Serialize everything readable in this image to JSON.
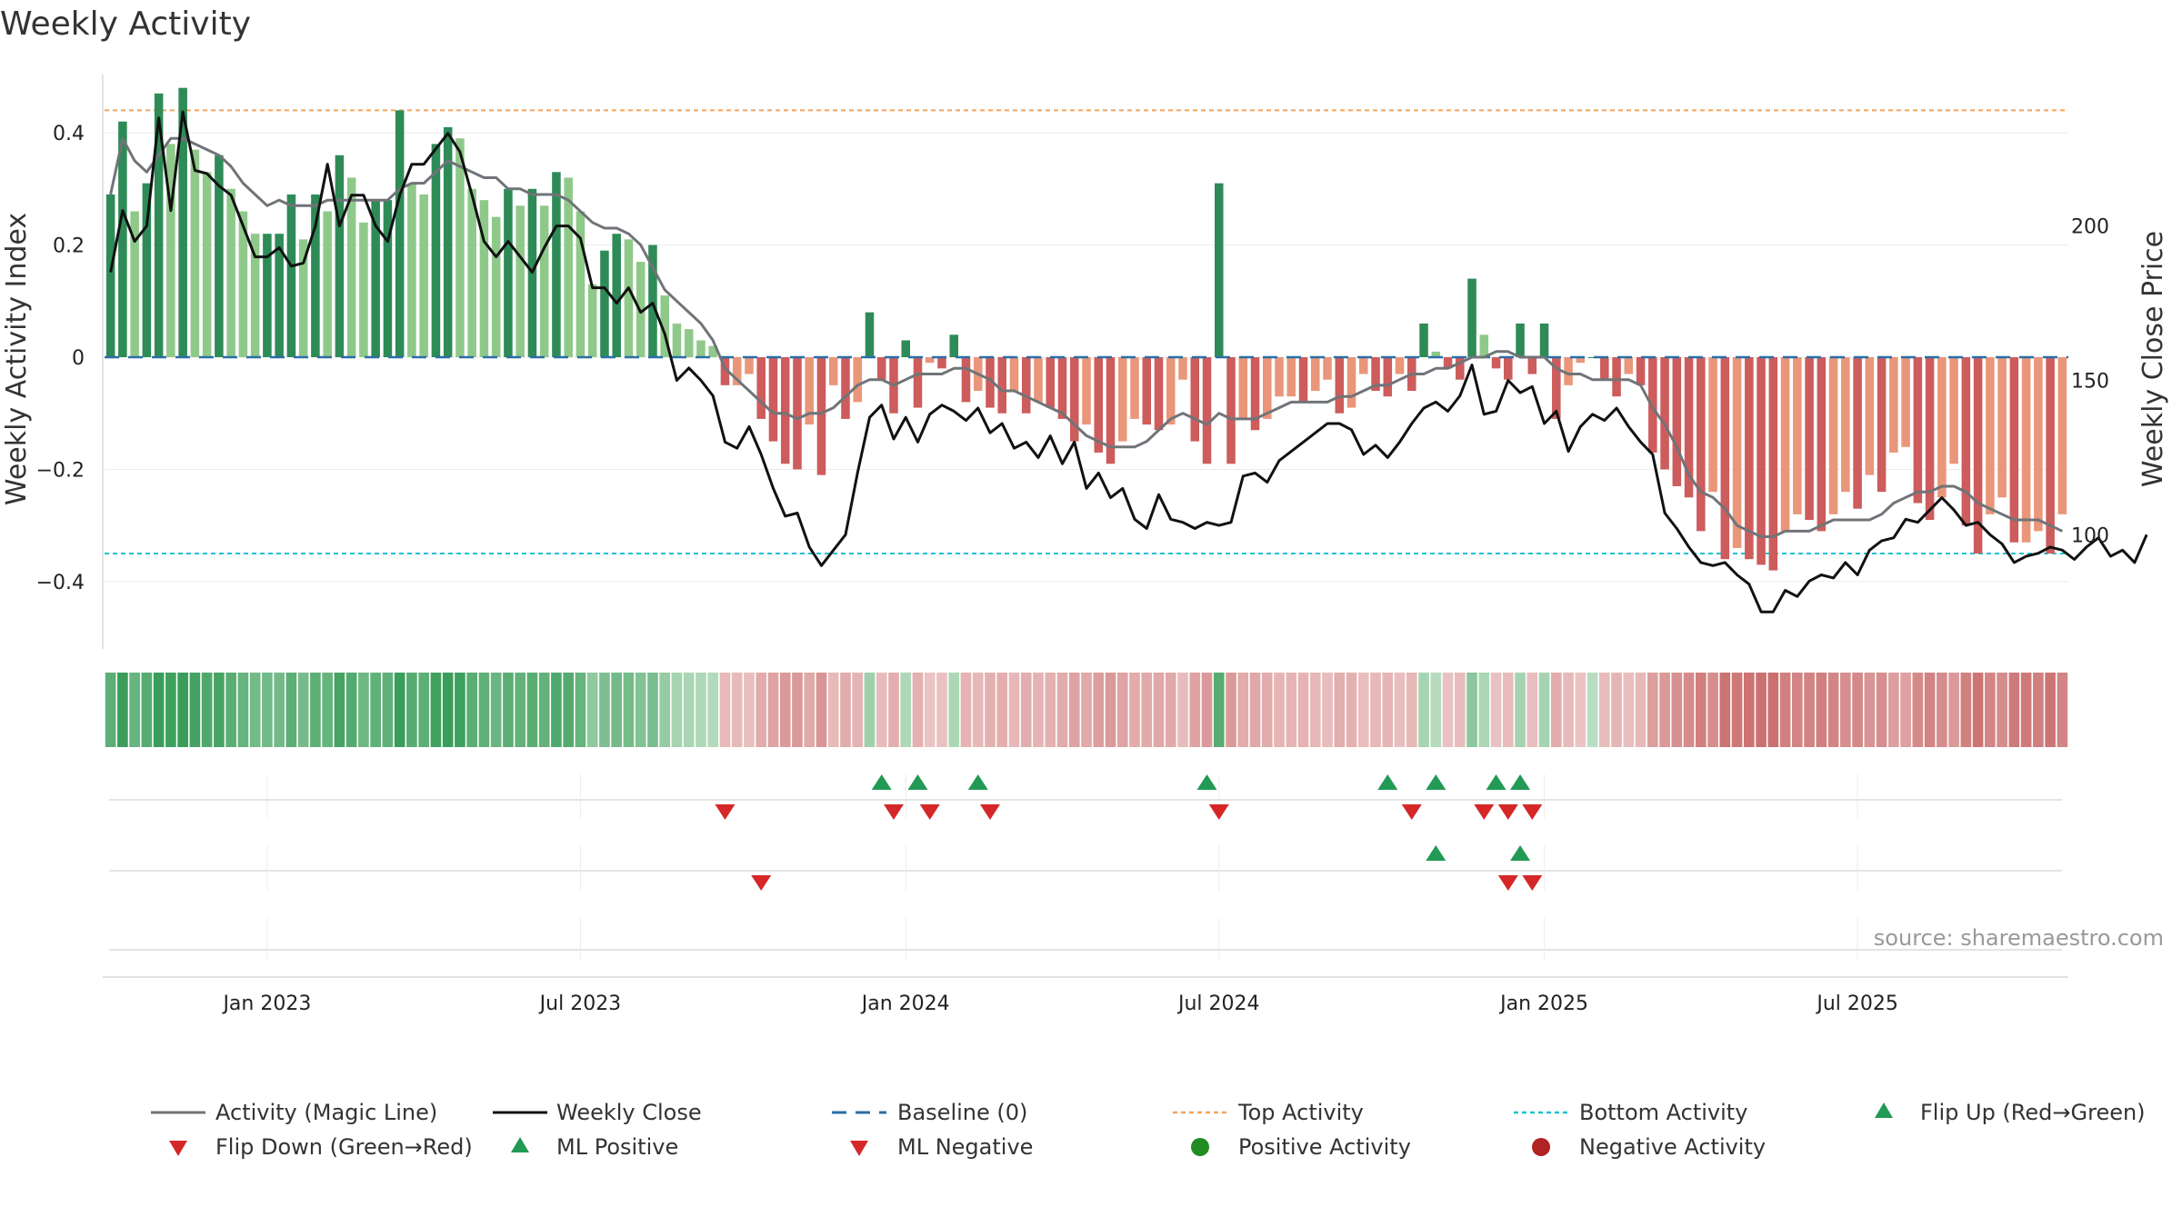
{
  "chart_data": {
    "type": "bar",
    "title": "Weekly Activity",
    "ylabel": "Weekly Activity Index",
    "y2label": "Weekly Close Price",
    "source": "source: sharemaestro.com",
    "ylim": [
      -0.52,
      0.52
    ],
    "y2lim": [
      63,
      252
    ],
    "yticks": [
      {
        "v": 0.4,
        "label": "0.4"
      },
      {
        "v": 0.2,
        "label": "0.2"
      },
      {
        "v": 0,
        "label": "0"
      },
      {
        "v": -0.2,
        "label": "−0.2"
      },
      {
        "v": -0.4,
        "label": "−0.4"
      }
    ],
    "y2ticks": [
      {
        "v": 200,
        "label": "200"
      },
      {
        "v": 150,
        "label": "150"
      },
      {
        "v": 100,
        "label": "100"
      }
    ],
    "xticks": [
      {
        "week": 13,
        "label": "Jan 2023"
      },
      {
        "week": 39,
        "label": "Jul 2023"
      },
      {
        "week": 66,
        "label": "Jan 2024"
      },
      {
        "week": 92,
        "label": "Jul 2024"
      },
      {
        "week": 119,
        "label": "Jan 2025"
      },
      {
        "week": 145,
        "label": "Jul 2025"
      }
    ],
    "top_activity": 0.44,
    "bottom_activity": -0.35,
    "activity": [
      0.29,
      0.42,
      0.26,
      0.31,
      0.47,
      0.38,
      0.48,
      0.37,
      0.33,
      0.36,
      0.3,
      0.26,
      0.22,
      0.22,
      0.22,
      0.29,
      0.21,
      0.29,
      0.26,
      0.36,
      0.32,
      0.24,
      0.28,
      0.28,
      0.44,
      0.31,
      0.29,
      0.38,
      0.41,
      0.39,
      0.3,
      0.28,
      0.25,
      0.3,
      0.27,
      0.3,
      0.27,
      0.33,
      0.32,
      0.26,
      0.13,
      0.19,
      0.22,
      0.21,
      0.17,
      0.2,
      0.11,
      0.06,
      0.05,
      0.03,
      0.02,
      -0.05,
      -0.05,
      -0.03,
      -0.11,
      -0.15,
      -0.19,
      -0.2,
      -0.12,
      -0.21,
      -0.05,
      -0.11,
      -0.08,
      0.08,
      -0.04,
      -0.1,
      0.03,
      -0.09,
      -0.01,
      -0.02,
      0.04,
      -0.08,
      -0.06,
      -0.09,
      -0.1,
      -0.06,
      -0.1,
      -0.08,
      -0.09,
      -0.11,
      -0.15,
      -0.12,
      -0.17,
      -0.19,
      -0.15,
      -0.11,
      -0.12,
      -0.13,
      -0.12,
      -0.04,
      -0.15,
      -0.19,
      0.31,
      -0.19,
      -0.11,
      -0.13,
      -0.11,
      -0.07,
      -0.07,
      -0.08,
      -0.06,
      -0.04,
      -0.1,
      -0.09,
      -0.03,
      -0.06,
      -0.07,
      -0.03,
      -0.06,
      0.06,
      0.01,
      -0.02,
      -0.04,
      0.14,
      0.04,
      -0.02,
      -0.04,
      0.06,
      -0.03,
      0.06,
      -0.11,
      -0.05,
      -0.01,
      0.0,
      -0.04,
      -0.07,
      -0.03,
      -0.05,
      -0.17,
      -0.2,
      -0.23,
      -0.25,
      -0.31,
      -0.24,
      -0.36,
      -0.34,
      -0.36,
      -0.37,
      -0.38,
      -0.31,
      -0.28,
      -0.29,
      -0.31,
      -0.28,
      -0.24,
      -0.27,
      -0.21,
      -0.24,
      -0.17,
      -0.16,
      -0.26,
      -0.29,
      -0.25,
      -0.19,
      -0.3,
      -0.35,
      -0.28,
      -0.25,
      -0.33,
      -0.33,
      -0.31,
      -0.35,
      -0.28
    ],
    "activity_ml": [
      0.29,
      0.39,
      0.35,
      0.33,
      0.36,
      0.39,
      0.39,
      0.38,
      0.37,
      0.36,
      0.34,
      0.31,
      0.29,
      0.27,
      0.28,
      0.27,
      0.27,
      0.27,
      0.28,
      0.28,
      0.28,
      0.28,
      0.28,
      0.28,
      0.3,
      0.31,
      0.31,
      0.33,
      0.35,
      0.34,
      0.33,
      0.32,
      0.32,
      0.3,
      0.3,
      0.29,
      0.29,
      0.29,
      0.28,
      0.26,
      0.24,
      0.23,
      0.23,
      0.22,
      0.2,
      0.16,
      0.12,
      0.1,
      0.08,
      0.06,
      0.03,
      -0.02,
      -0.04,
      -0.06,
      -0.08,
      -0.1,
      -0.1,
      -0.11,
      -0.1,
      -0.1,
      -0.09,
      -0.07,
      -0.05,
      -0.04,
      -0.04,
      -0.05,
      -0.04,
      -0.03,
      -0.03,
      -0.03,
      -0.02,
      -0.02,
      -0.03,
      -0.04,
      -0.06,
      -0.06,
      -0.07,
      -0.08,
      -0.09,
      -0.1,
      -0.12,
      -0.14,
      -0.15,
      -0.16,
      -0.16,
      -0.16,
      -0.15,
      -0.13,
      -0.11,
      -0.1,
      -0.11,
      -0.12,
      -0.1,
      -0.11,
      -0.11,
      -0.11,
      -0.1,
      -0.09,
      -0.08,
      -0.08,
      -0.08,
      -0.08,
      -0.07,
      -0.07,
      -0.06,
      -0.05,
      -0.05,
      -0.04,
      -0.03,
      -0.03,
      -0.02,
      -0.02,
      -0.01,
      0.0,
      0.0,
      0.01,
      0.01,
      0.0,
      0.0,
      0.0,
      -0.02,
      -0.03,
      -0.03,
      -0.04,
      -0.04,
      -0.04,
      -0.04,
      -0.05,
      -0.09,
      -0.12,
      -0.16,
      -0.21,
      -0.24,
      -0.25,
      -0.27,
      -0.3,
      -0.31,
      -0.32,
      -0.32,
      -0.31,
      -0.31,
      -0.31,
      -0.3,
      -0.29,
      -0.29,
      -0.29,
      -0.29,
      -0.28,
      -0.26,
      -0.25,
      -0.24,
      -0.24,
      -0.23,
      -0.23,
      -0.24,
      -0.26,
      -0.27,
      -0.28,
      -0.29,
      -0.29,
      -0.29,
      -0.3,
      -0.31
    ],
    "close": [
      185,
      205,
      195,
      200,
      235,
      205,
      237,
      218,
      217,
      213,
      210,
      200,
      190,
      190,
      193,
      187,
      188,
      200,
      220,
      200,
      210,
      210,
      200,
      195,
      210,
      220,
      220,
      225,
      230,
      224,
      210,
      195,
      190,
      195,
      190,
      185,
      193,
      200,
      200,
      196,
      180,
      180,
      175,
      180,
      172,
      175,
      165,
      150,
      154,
      150,
      145,
      130,
      128,
      135,
      126,
      115,
      106,
      107,
      96,
      90,
      95,
      100,
      120,
      138,
      142,
      131,
      138,
      130,
      139,
      142,
      140,
      137,
      141,
      133,
      136,
      128,
      130,
      125,
      132,
      123,
      130,
      115,
      120,
      112,
      115,
      105,
      102,
      113,
      105,
      104,
      102,
      104,
      103,
      104,
      119,
      120,
      117,
      124,
      127,
      130,
      133,
      136,
      136,
      134,
      126,
      129,
      125,
      130,
      136,
      141,
      143,
      140,
      145,
      155,
      139,
      140,
      150,
      146,
      148,
      136,
      140,
      127,
      135,
      139,
      137,
      141,
      135,
      130,
      126,
      107,
      102,
      96,
      91,
      90,
      91,
      87,
      84,
      75,
      75,
      82,
      80,
      85,
      87,
      86,
      91,
      87,
      95,
      98,
      99,
      105,
      104,
      108,
      112,
      108,
      103,
      104,
      100,
      97,
      91,
      93,
      94,
      96,
      95,
      92,
      96,
      99,
      93,
      95,
      91,
      100
    ]
  },
  "markers": {
    "row1_up_weeks": [
      64,
      67,
      72,
      91,
      106,
      110,
      115,
      117
    ],
    "row1_down_weeks": [
      51,
      65,
      68,
      73,
      92,
      108,
      114,
      116,
      118
    ],
    "row2_up_weeks": [
      110,
      117
    ],
    "row2_down_weeks": [
      54,
      116,
      118
    ]
  },
  "legend": {
    "activity_ml": "Activity (Magic Line)",
    "weekly_close": "Weekly Close",
    "baseline": "Baseline (0)",
    "top_activity": "Top Activity",
    "bottom_activity": "Bottom Activity",
    "flip_up": "Flip Up (Red→Green)",
    "flip_down": "Flip Down (Green→Red)",
    "ml_positive": "ML Positive",
    "ml_negative": "ML Negative",
    "positive_activity": "Positive Activity",
    "negative_activity": "Negative Activity"
  },
  "colors": {
    "pos_dark": "#2e8b57",
    "pos_light": "#8fc98a",
    "neg_dark": "#cd5c5c",
    "neg_light": "#e9967a",
    "ml_line": "#707478",
    "close_line": "#111111",
    "baseline": "#2b6ea6",
    "top": "#f4a460",
    "bottom": "#1fc2d0",
    "up_marker": "#229954",
    "down_marker": "#d62728",
    "pos_dot": "#228b22",
    "neg_dot": "#b22222"
  }
}
